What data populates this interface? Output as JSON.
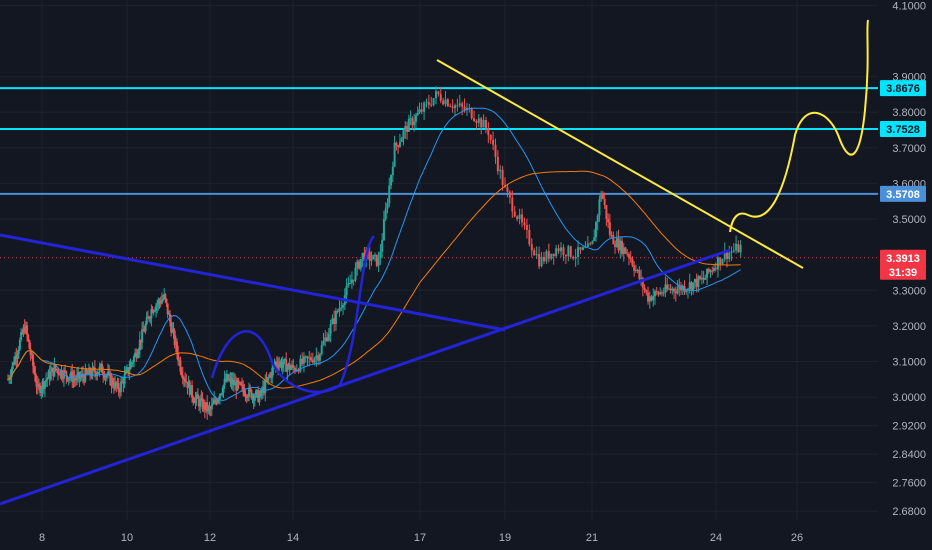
{
  "chart_data": {
    "type": "candlestick",
    "price_axis": {
      "ticks": [
        "4.1000",
        "3.9000",
        "3.8000",
        "3.7000",
        "3.6000",
        "3.5000",
        "3.3000",
        "3.2000",
        "3.1000",
        "3.0000",
        "2.9200",
        "2.8400",
        "2.7600",
        "2.6800"
      ],
      "ylim": [
        2.655,
        4.115
      ]
    },
    "date_axis": {
      "ticks": [
        "8",
        "10",
        "12",
        "14",
        "17",
        "19",
        "21",
        "24",
        "26"
      ],
      "xlim": [
        7.2,
        28.2
      ]
    },
    "tick_positions": {
      "8": 8,
      "10": 10,
      "12": 12,
      "14": 14,
      "17": 16,
      "19": 17,
      "21": 18,
      "24": 20,
      "26": 21
    },
    "levels": [
      {
        "label": "3.8676",
        "value": 3.8676,
        "color": "#00e5ff"
      },
      {
        "label": "3.7528",
        "value": 3.7528,
        "color": "#00e5ff"
      },
      {
        "label": "3.5708",
        "value": 3.5708,
        "color": "#4a90d9"
      }
    ],
    "last_price": {
      "label": "3.3913",
      "value": 3.3913,
      "color": "#f23645"
    },
    "countdown": "31:39",
    "colors": {
      "up": "#26a69a",
      "down": "#ef5350",
      "ma_fast": "#2196f3",
      "ma_slow": "#f57c00",
      "trend_blue": "#2323d8",
      "trend_yellow": "#ffeb3b",
      "background": "#131722",
      "grid": "#1e222d",
      "axis_text": "#b2b5be"
    }
  }
}
